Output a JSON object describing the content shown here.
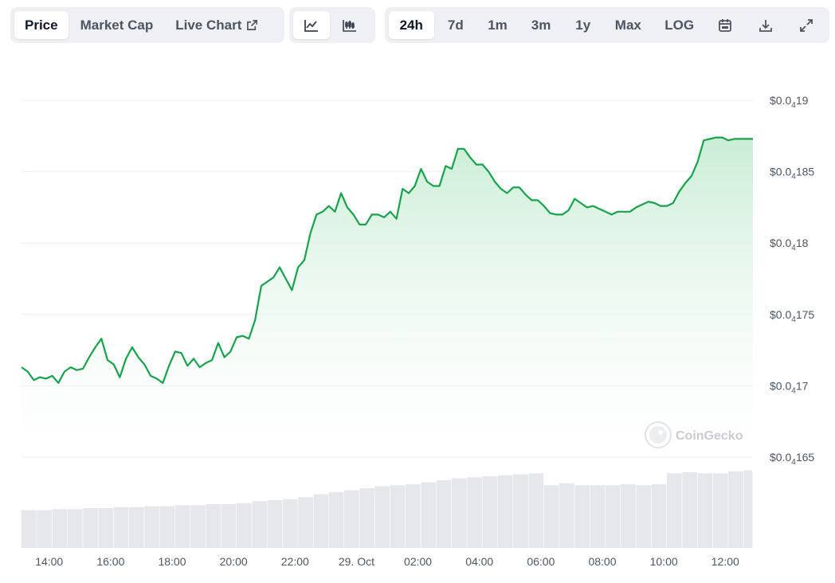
{
  "toolbar": {
    "metric_tabs": [
      {
        "label": "Price",
        "active": true
      },
      {
        "label": "Market Cap",
        "active": false
      },
      {
        "label": "Live Chart",
        "active": false,
        "icon": "external-link-icon"
      }
    ],
    "chart_type_buttons": [
      {
        "icon": "line-chart-icon",
        "active": true
      },
      {
        "icon": "candlestick-chart-icon",
        "active": false
      }
    ],
    "range_buttons": [
      {
        "label": "24h",
        "active": true
      },
      {
        "label": "7d",
        "active": false
      },
      {
        "label": "1m",
        "active": false
      },
      {
        "label": "3m",
        "active": false
      },
      {
        "label": "1y",
        "active": false
      },
      {
        "label": "Max",
        "active": false
      },
      {
        "label": "LOG",
        "active": false
      }
    ],
    "tool_icons": [
      "calendar-icon",
      "download-icon",
      "expand-icon"
    ]
  },
  "watermark": "CoinGecko",
  "colors": {
    "line": "#16a34a",
    "area_top": "#c6ecd3",
    "volume": "#e5e7eb",
    "grid": "#eceef1"
  },
  "chart_data": {
    "type": "line",
    "ylim": [
      1.65e-05,
      1.9e-05
    ],
    "y_ticks": [
      {
        "value": 1.9e-05,
        "prefix": "$0.0",
        "sub": "4",
        "suffix": "19"
      },
      {
        "value": 1.85e-05,
        "prefix": "$0.0",
        "sub": "4",
        "suffix": "185"
      },
      {
        "value": 1.8e-05,
        "prefix": "$0.0",
        "sub": "4",
        "suffix": "18"
      },
      {
        "value": 1.75e-05,
        "prefix": "$0.0",
        "sub": "4",
        "suffix": "175"
      },
      {
        "value": 1.7e-05,
        "prefix": "$0.0",
        "sub": "4",
        "suffix": "17"
      },
      {
        "value": 1.65e-05,
        "prefix": "$0.0",
        "sub": "4",
        "suffix": "165"
      }
    ],
    "x_ticks": [
      "14:00",
      "16:00",
      "18:00",
      "20:00",
      "22:00",
      "29. Oct",
      "02:00",
      "04:00",
      "06:00",
      "08:00",
      "10:00",
      "12:00"
    ],
    "x_tick_hours": [
      14,
      16,
      18,
      20,
      22,
      24,
      26,
      28,
      30,
      32,
      34,
      36
    ],
    "x_range_hours": [
      13.1,
      36.9
    ],
    "series": [
      {
        "x": [
          13.1,
          13.3,
          13.5,
          13.7,
          13.9,
          14.1,
          14.3,
          14.5,
          14.7,
          14.9,
          15.1,
          15.3,
          15.5,
          15.7,
          15.9,
          16.1,
          16.3,
          16.5,
          16.7,
          16.9,
          17.1,
          17.3,
          17.5,
          17.7,
          17.9,
          18.1,
          18.3,
          18.5,
          18.7,
          18.9,
          19.1,
          19.3,
          19.5,
          19.7,
          19.9,
          20.1,
          20.3,
          20.5,
          20.7,
          20.9,
          21.1,
          21.3,
          21.5,
          21.7,
          21.9,
          22.1,
          22.3,
          22.5,
          22.7,
          22.9,
          23.1,
          23.3,
          23.5,
          23.7,
          23.9,
          24.1,
          24.3,
          24.5,
          24.7,
          24.9,
          25.1,
          25.3,
          25.5,
          25.7,
          25.9,
          26.1,
          26.3,
          26.5,
          26.7,
          26.9,
          27.1,
          27.3,
          27.5,
          27.7,
          27.9,
          28.1,
          28.3,
          28.5,
          28.7,
          28.9,
          29.1,
          29.3,
          29.5,
          29.7,
          29.9,
          30.1,
          30.3,
          30.5,
          30.7,
          30.9,
          31.1,
          31.3,
          31.5,
          31.7,
          31.9,
          32.1,
          32.3,
          32.5,
          32.7,
          32.9,
          33.1,
          33.3,
          33.5,
          33.7,
          33.9,
          34.1,
          34.3,
          34.5,
          34.7,
          34.9,
          35.1,
          35.3,
          35.5,
          35.7,
          35.9,
          36.1,
          36.3,
          36.5,
          36.7,
          36.9
        ],
        "y": [
          1.713e-05,
          1.71e-05,
          1.704e-05,
          1.706e-05,
          1.705e-05,
          1.707e-05,
          1.702e-05,
          1.71e-05,
          1.713e-05,
          1.711e-05,
          1.712e-05,
          1.72e-05,
          1.727e-05,
          1.733e-05,
          1.718e-05,
          1.715e-05,
          1.706e-05,
          1.719e-05,
          1.727e-05,
          1.72e-05,
          1.715e-05,
          1.707e-05,
          1.705e-05,
          1.702e-05,
          1.714e-05,
          1.724e-05,
          1.723e-05,
          1.714e-05,
          1.719e-05,
          1.713e-05,
          1.716e-05,
          1.718e-05,
          1.73e-05,
          1.72e-05,
          1.724e-05,
          1.734e-05,
          1.735e-05,
          1.733e-05,
          1.746e-05,
          1.77e-05,
          1.773e-05,
          1.776e-05,
          1.783e-05,
          1.775e-05,
          1.767e-05,
          1.783e-05,
          1.788e-05,
          1.807e-05,
          1.82e-05,
          1.822e-05,
          1.826e-05,
          1.822e-05,
          1.835e-05,
          1.825e-05,
          1.82e-05,
          1.813e-05,
          1.813e-05,
          1.82e-05,
          1.82e-05,
          1.818e-05,
          1.822e-05,
          1.817e-05,
          1.838e-05,
          1.835e-05,
          1.84e-05,
          1.852e-05,
          1.843e-05,
          1.84e-05,
          1.84e-05,
          1.854e-05,
          1.852e-05,
          1.866e-05,
          1.866e-05,
          1.86e-05,
          1.855e-05,
          1.855e-05,
          1.85e-05,
          1.843e-05,
          1.838e-05,
          1.835e-05,
          1.839e-05,
          1.839e-05,
          1.834e-05,
          1.83e-05,
          1.83e-05,
          1.826e-05,
          1.821e-05,
          1.82e-05,
          1.82e-05,
          1.823e-05,
          1.831e-05,
          1.828e-05,
          1.825e-05,
          1.826e-05,
          1.824e-05,
          1.822e-05,
          1.82e-05,
          1.822e-05,
          1.822e-05,
          1.822e-05,
          1.825e-05,
          1.827e-05,
          1.829e-05,
          1.828e-05,
          1.826e-05,
          1.826e-05,
          1.828e-05,
          1.836e-05,
          1.842e-05,
          1.847e-05,
          1.857e-05,
          1.872e-05,
          1.873e-05,
          1.874e-05,
          1.874e-05,
          1.872e-05,
          1.873e-05,
          1.873e-05,
          1.873e-05,
          1.873e-05
        ]
      }
    ],
    "volume": {
      "x": [
        13.1,
        13.6,
        14.1,
        14.6,
        15.1,
        15.6,
        16.1,
        16.6,
        17.1,
        17.6,
        18.1,
        18.6,
        19.1,
        19.6,
        20.1,
        20.6,
        21.1,
        21.6,
        22.1,
        22.6,
        23.1,
        23.6,
        24.1,
        24.6,
        25.1,
        25.6,
        26.1,
        26.6,
        27.1,
        27.6,
        28.1,
        28.6,
        29.1,
        29.6,
        30.1,
        30.6,
        31.1,
        31.6,
        32.1,
        32.6,
        33.1,
        33.6,
        34.1,
        34.6,
        35.1,
        35.6,
        36.1,
        36.6
      ],
      "values": [
        38,
        38,
        39,
        39,
        40,
        40,
        41,
        41,
        42,
        42,
        43,
        43,
        44,
        44,
        45,
        47,
        48,
        49,
        51,
        54,
        56,
        58,
        60,
        62,
        63,
        64,
        66,
        68,
        70,
        71,
        72,
        73,
        74,
        75,
        63,
        65,
        63,
        63,
        63,
        64,
        63,
        64,
        75,
        76,
        75,
        75,
        77,
        78
      ]
    }
  }
}
